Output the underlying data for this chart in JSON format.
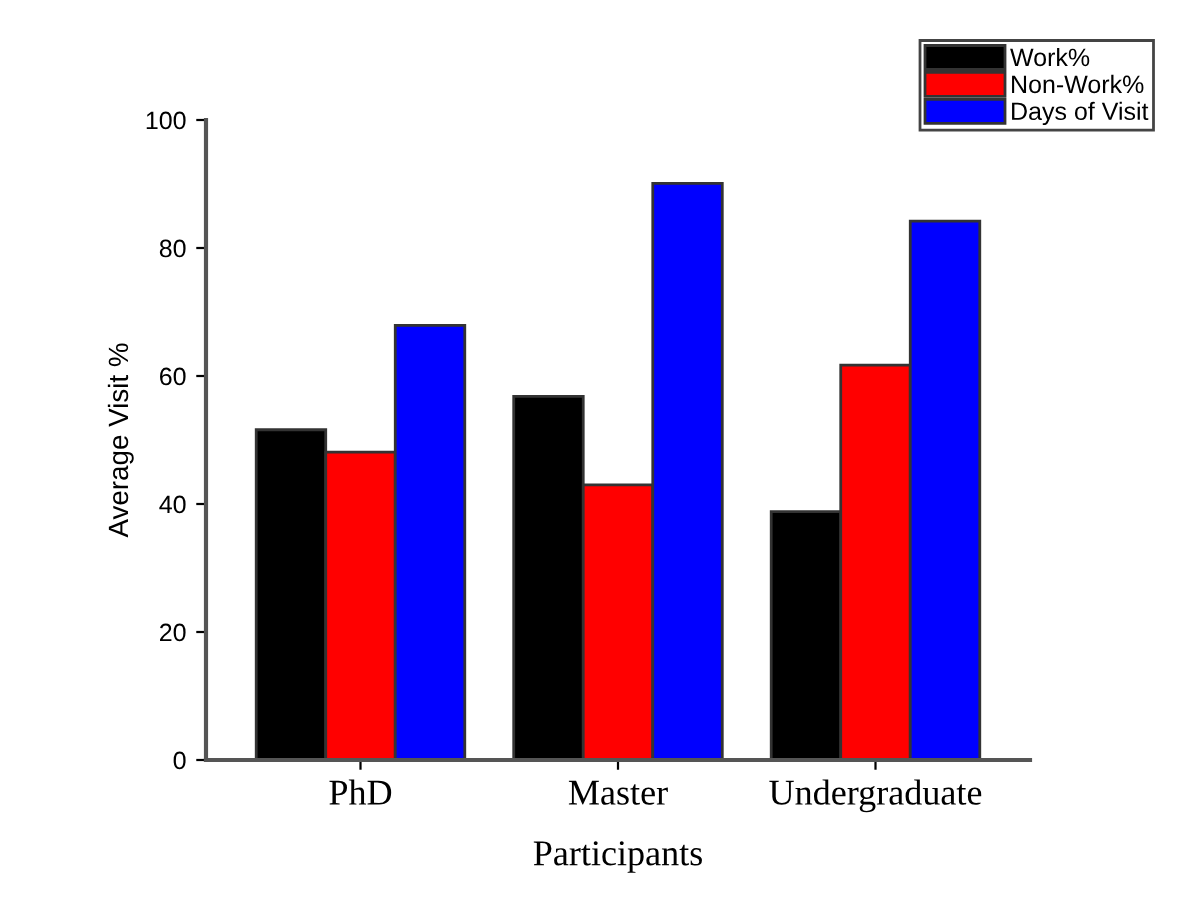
{
  "chart_data": {
    "type": "bar",
    "xlabel": "Participants",
    "ylabel": "Average Visit %",
    "categories": [
      "PhD",
      "Master",
      "Undergraduate"
    ],
    "series": [
      {
        "name": "Work%",
        "color": "#000000",
        "values": [
          51.6,
          56.8,
          38.8
        ]
      },
      {
        "name": "Non-Work%",
        "color": "#ff0000",
        "values": [
          48.1,
          43.0,
          61.7
        ]
      },
      {
        "name": "Days of Visit",
        "color": "#0000ff",
        "values": [
          67.9,
          90.1,
          84.2
        ]
      }
    ],
    "ylim": [
      0,
      100
    ],
    "yticks": [
      0,
      20,
      40,
      60,
      80,
      100
    ],
    "grid": false,
    "legend": "top right"
  }
}
